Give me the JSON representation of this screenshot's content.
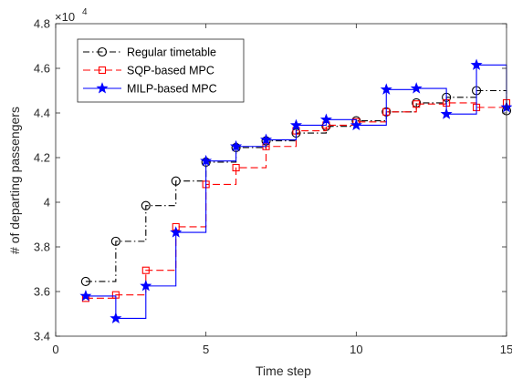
{
  "chart_data": {
    "type": "line",
    "title": "",
    "xlabel": "Time step",
    "ylabel": "# of departing passengers",
    "y_exponent_label": "×10",
    "y_exponent_power": "4",
    "xlim": [
      0,
      15
    ],
    "ylim": [
      3.4,
      4.8
    ],
    "y_scale_factor": 10000,
    "x_ticks": [
      0,
      5,
      10,
      15
    ],
    "x_tick_labels": [
      "0",
      "5",
      "10",
      "15"
    ],
    "y_ticks": [
      3.4,
      3.6,
      3.8,
      4.0,
      4.2,
      4.4,
      4.6,
      4.8
    ],
    "y_tick_labels": [
      "3.4",
      "3.6",
      "3.8",
      "4",
      "4.2",
      "4.4",
      "4.6",
      "4.8"
    ],
    "grid": false,
    "legend_position": "top-left",
    "x": [
      1,
      2,
      3,
      4,
      5,
      6,
      7,
      8,
      9,
      10,
      11,
      12,
      13,
      14,
      15
    ],
    "series": [
      {
        "name": "Regular timetable",
        "color": "#000000",
        "line_style": "dash-dot",
        "marker": "circle",
        "values": [
          3.645,
          3.825,
          3.985,
          4.095,
          4.18,
          4.245,
          4.275,
          4.31,
          4.34,
          4.365,
          4.405,
          4.445,
          4.47,
          4.5,
          4.41
        ]
      },
      {
        "name": "SQP-based MPC",
        "color": "#ff0000",
        "line_style": "dashed",
        "marker": "square",
        "values": [
          3.57,
          3.585,
          3.695,
          3.89,
          4.08,
          4.155,
          4.25,
          4.32,
          4.345,
          4.36,
          4.405,
          4.44,
          4.445,
          4.425,
          4.445
        ]
      },
      {
        "name": "MILP-based MPC",
        "color": "#0000ff",
        "line_style": "solid",
        "marker": "star",
        "values": [
          3.58,
          3.48,
          3.625,
          3.865,
          4.185,
          4.25,
          4.28,
          4.345,
          4.37,
          4.345,
          4.505,
          4.51,
          4.395,
          4.615,
          4.425
        ]
      }
    ]
  }
}
